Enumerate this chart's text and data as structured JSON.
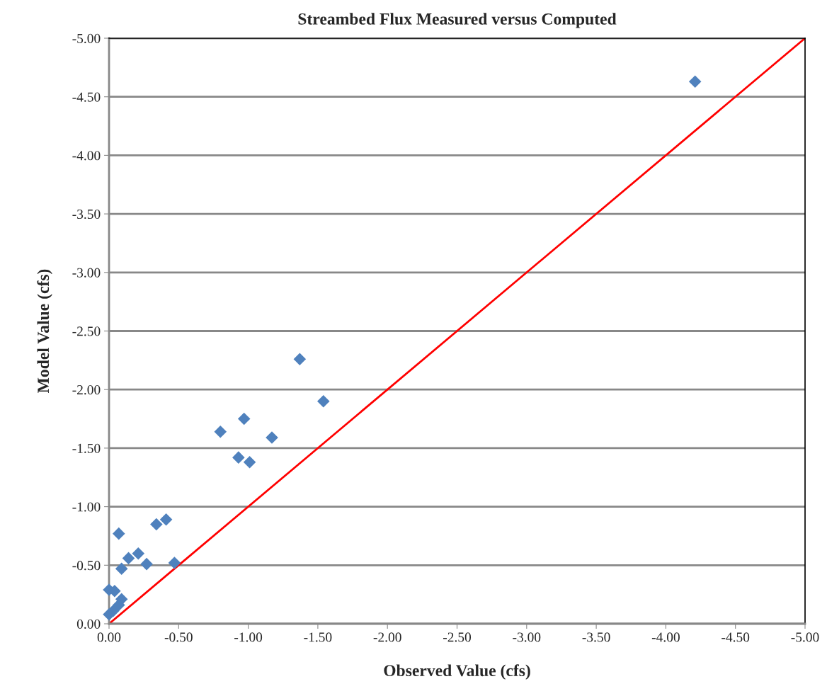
{
  "chart_data": {
    "type": "scatter",
    "title": "Streambed Flux Measured versus Computed",
    "xlabel": "Observed Value (cfs)",
    "ylabel": "Model Value (cfs)",
    "series": [
      {
        "color": "#4f81bd",
        "marker": "diamond",
        "x": [
          0.0,
          -0.04,
          -0.07,
          -0.09,
          -0.14,
          -0.21,
          -0.27,
          -0.34,
          -0.41,
          -0.47,
          -0.8,
          -0.93,
          -0.97,
          -1.01,
          -1.17,
          -1.37,
          -1.54,
          -4.21,
          0.0,
          -0.03,
          -0.07,
          -0.09
        ],
        "values": [
          -0.29,
          -0.28,
          -0.77,
          -0.47,
          -0.56,
          -0.6,
          -0.51,
          -0.85,
          -0.89,
          -0.52,
          -1.64,
          -1.42,
          -1.75,
          -1.38,
          -1.59,
          -2.26,
          -1.9,
          -4.63,
          -0.08,
          -0.11,
          -0.16,
          -0.21
        ]
      },
      {
        "type": "line",
        "color": "#ff0000",
        "marker": "none",
        "x": [
          0,
          -5
        ],
        "values": [
          0,
          -5
        ]
      }
    ],
    "xlim": [
      0,
      -5
    ],
    "ylim": [
      0,
      -5
    ],
    "xticks": [
      {
        "value": 0,
        "label": "0.00"
      },
      {
        "value": -0.5,
        "label": "-0.50"
      },
      {
        "value": -1,
        "label": "-1.00"
      },
      {
        "value": -1.5,
        "label": "-1.50"
      },
      {
        "value": -2,
        "label": "-2.00"
      },
      {
        "value": -2.5,
        "label": "-2.50"
      },
      {
        "value": -3,
        "label": "-3.00"
      },
      {
        "value": -3.5,
        "label": "-3.50"
      },
      {
        "value": -4,
        "label": "-4.00"
      },
      {
        "value": -4.5,
        "label": "-4.50"
      },
      {
        "value": -5,
        "label": "-5.00"
      }
    ],
    "yticks": [
      {
        "value": 0,
        "label": "0.00"
      },
      {
        "value": -0.5,
        "label": "-0.50"
      },
      {
        "value": -1,
        "label": "-1.00"
      },
      {
        "value": -1.5,
        "label": "-1.50"
      },
      {
        "value": -2,
        "label": "-2.00"
      },
      {
        "value": -2.5,
        "label": "-2.50"
      },
      {
        "value": -3,
        "label": "-3.00"
      },
      {
        "value": -3.5,
        "label": "-3.50"
      },
      {
        "value": -4,
        "label": "-4.00"
      },
      {
        "value": -4.5,
        "label": "-4.50"
      },
      {
        "value": -5,
        "label": "-5.00"
      }
    ],
    "grid": "y"
  }
}
